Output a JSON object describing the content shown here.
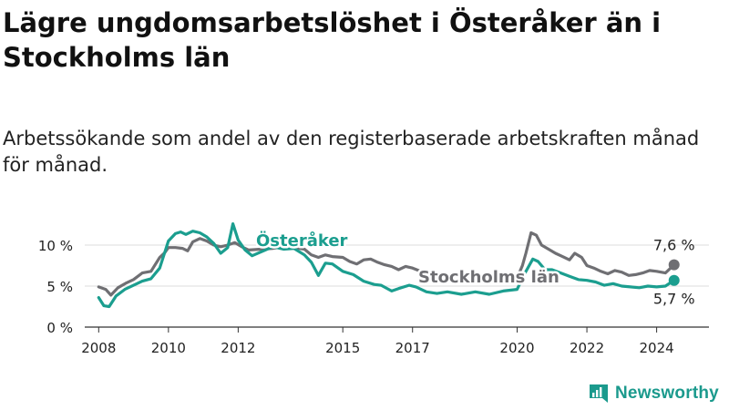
{
  "title": "Lägre ungdomsarbetslöshet i Österåker än i Stockholms län",
  "subtitle": "Arbetssökande som andel av den registerbaserade arbetskraften månad för månad.",
  "logo_text": "Newsworthy",
  "colors": {
    "osteraker": "#1b9e8f",
    "stockholm": "#6f6f73",
    "grid": "#dcdcdc",
    "text": "#222222"
  },
  "chart_data": {
    "type": "line",
    "title": "Lägre ungdomsarbetslöshet i Österåker än i Stockholms län",
    "ylabel": "",
    "xlabel": "",
    "ylim": [
      0,
      14
    ],
    "xlim": [
      2007.6,
      2025.5
    ],
    "yticks": [
      0,
      5,
      10
    ],
    "ytick_labels": [
      "0 %",
      "5 %",
      "10 %"
    ],
    "xticks": [
      2008,
      2010,
      2012,
      2015,
      2017,
      2020,
      2022,
      2024
    ],
    "xtick_labels": [
      "2008",
      "2010",
      "2012",
      "2015",
      "2017",
      "2020",
      "2022",
      "2024"
    ],
    "grid": true,
    "series": [
      {
        "name": "Österåker",
        "key": "osteraker",
        "last_label": "5,7 %",
        "points": [
          [
            2008.0,
            3.6
          ],
          [
            2008.15,
            2.6
          ],
          [
            2008.3,
            2.5
          ],
          [
            2008.5,
            3.8
          ],
          [
            2008.75,
            4.6
          ],
          [
            2009.0,
            5.1
          ],
          [
            2009.25,
            5.6
          ],
          [
            2009.5,
            5.9
          ],
          [
            2009.75,
            7.2
          ],
          [
            2010.0,
            10.5
          ],
          [
            2010.2,
            11.4
          ],
          [
            2010.35,
            11.6
          ],
          [
            2010.5,
            11.3
          ],
          [
            2010.7,
            11.7
          ],
          [
            2010.9,
            11.5
          ],
          [
            2011.1,
            11.0
          ],
          [
            2011.3,
            10.2
          ],
          [
            2011.5,
            9.0
          ],
          [
            2011.7,
            9.7
          ],
          [
            2011.85,
            12.6
          ],
          [
            2012.0,
            10.6
          ],
          [
            2012.2,
            9.4
          ],
          [
            2012.4,
            8.7
          ],
          [
            2013.0,
            9.8
          ],
          [
            2013.3,
            9.5
          ],
          [
            2013.6,
            9.6
          ],
          [
            2013.9,
            8.8
          ],
          [
            2014.1,
            7.9
          ],
          [
            2014.3,
            6.3
          ],
          [
            2014.5,
            7.8
          ],
          [
            2014.7,
            7.7
          ],
          [
            2015.0,
            6.8
          ],
          [
            2015.3,
            6.4
          ],
          [
            2015.6,
            5.6
          ],
          [
            2015.9,
            5.2
          ],
          [
            2016.1,
            5.1
          ],
          [
            2016.4,
            4.4
          ],
          [
            2016.6,
            4.7
          ],
          [
            2016.9,
            5.1
          ],
          [
            2017.1,
            4.9
          ],
          [
            2017.4,
            4.3
          ],
          [
            2017.7,
            4.1
          ],
          [
            2018.0,
            4.3
          ],
          [
            2018.4,
            4.0
          ],
          [
            2018.8,
            4.3
          ],
          [
            2019.2,
            4.0
          ],
          [
            2019.6,
            4.4
          ],
          [
            2020.0,
            4.6
          ],
          [
            2020.2,
            6.4
          ],
          [
            2020.45,
            8.3
          ],
          [
            2020.6,
            8.0
          ],
          [
            2020.8,
            7.0
          ],
          [
            2021.0,
            7.0
          ],
          [
            2021.25,
            6.6
          ],
          [
            2021.5,
            6.2
          ],
          [
            2021.75,
            5.8
          ],
          [
            2022.0,
            5.7
          ],
          [
            2022.25,
            5.5
          ],
          [
            2022.5,
            5.1
          ],
          [
            2022.75,
            5.3
          ],
          [
            2023.0,
            5.0
          ],
          [
            2023.25,
            4.9
          ],
          [
            2023.5,
            4.8
          ],
          [
            2023.75,
            5.0
          ],
          [
            2024.0,
            4.9
          ],
          [
            2024.25,
            5.0
          ],
          [
            2024.5,
            5.7
          ]
        ]
      },
      {
        "name": "Stockholms län",
        "key": "stockholm",
        "last_label": "7,6 %",
        "points": [
          [
            2008.0,
            4.9
          ],
          [
            2008.2,
            4.6
          ],
          [
            2008.35,
            3.9
          ],
          [
            2008.55,
            4.8
          ],
          [
            2008.8,
            5.4
          ],
          [
            2009.0,
            5.8
          ],
          [
            2009.25,
            6.6
          ],
          [
            2009.5,
            6.8
          ],
          [
            2009.75,
            8.5
          ],
          [
            2009.9,
            9.1
          ],
          [
            2010.0,
            9.7
          ],
          [
            2010.2,
            9.7
          ],
          [
            2010.4,
            9.6
          ],
          [
            2010.55,
            9.3
          ],
          [
            2010.7,
            10.4
          ],
          [
            2010.9,
            10.8
          ],
          [
            2011.1,
            10.5
          ],
          [
            2011.3,
            10.0
          ],
          [
            2011.5,
            9.8
          ],
          [
            2011.7,
            10.0
          ],
          [
            2011.9,
            10.3
          ],
          [
            2012.1,
            9.8
          ],
          [
            2012.3,
            9.4
          ],
          [
            2013.0,
            9.6
          ],
          [
            2013.3,
            9.8
          ],
          [
            2013.6,
            9.7
          ],
          [
            2013.9,
            9.5
          ],
          [
            2014.1,
            8.8
          ],
          [
            2014.3,
            8.5
          ],
          [
            2014.5,
            8.8
          ],
          [
            2014.7,
            8.6
          ],
          [
            2015.0,
            8.5
          ],
          [
            2015.2,
            8.0
          ],
          [
            2015.4,
            7.7
          ],
          [
            2015.6,
            8.2
          ],
          [
            2015.8,
            8.3
          ],
          [
            2016.0,
            7.9
          ],
          [
            2016.2,
            7.6
          ],
          [
            2016.4,
            7.4
          ],
          [
            2016.6,
            7.0
          ],
          [
            2016.8,
            7.4
          ],
          [
            2017.0,
            7.2
          ],
          [
            2017.3,
            6.7
          ],
          [
            2017.6,
            6.4
          ],
          [
            2020.0,
            6.0
          ],
          [
            2020.15,
            7.5
          ],
          [
            2020.25,
            9.0
          ],
          [
            2020.4,
            11.5
          ],
          [
            2020.55,
            11.2
          ],
          [
            2020.7,
            10.0
          ],
          [
            2020.9,
            9.5
          ],
          [
            2021.1,
            9.0
          ],
          [
            2021.3,
            8.6
          ],
          [
            2021.5,
            8.2
          ],
          [
            2021.65,
            9.0
          ],
          [
            2021.85,
            8.5
          ],
          [
            2022.0,
            7.5
          ],
          [
            2022.2,
            7.2
          ],
          [
            2022.4,
            6.8
          ],
          [
            2022.6,
            6.5
          ],
          [
            2022.8,
            6.9
          ],
          [
            2023.0,
            6.7
          ],
          [
            2023.2,
            6.3
          ],
          [
            2023.4,
            6.4
          ],
          [
            2023.6,
            6.6
          ],
          [
            2023.8,
            6.9
          ],
          [
            2024.0,
            6.8
          ],
          [
            2024.25,
            6.6
          ],
          [
            2024.5,
            7.6
          ]
        ]
      }
    ],
    "annotations": [
      {
        "text": "Österåker",
        "series": "osteraker"
      },
      {
        "text": "Stockholms län",
        "series": "stockholm"
      }
    ]
  }
}
